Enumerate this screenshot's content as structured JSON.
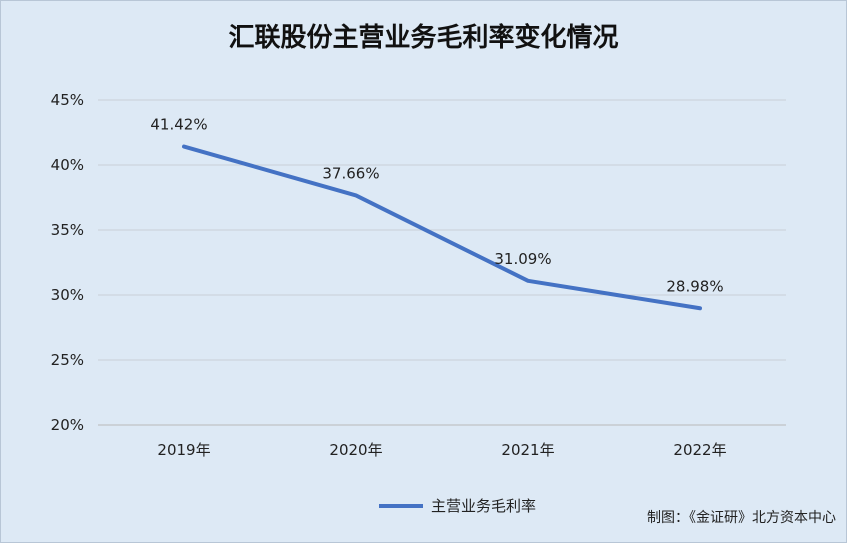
{
  "chart_data": {
    "type": "line",
    "title": "汇联股份主营业务毛利率变化情况",
    "categories": [
      "2019年",
      "2020年",
      "2021年",
      "2022年"
    ],
    "series": [
      {
        "name": "主营业务毛利率",
        "values": [
          41.42,
          37.66,
          31.09,
          28.98
        ],
        "color": "#4472c4"
      }
    ],
    "data_labels": [
      "41.42%",
      "37.66%",
      "31.09%",
      "28.98%"
    ],
    "yticks": [
      "20%",
      "25%",
      "30%",
      "35%",
      "40%",
      "45%"
    ],
    "ylim": [
      20,
      45
    ],
    "grid": true,
    "legend_position": "bottom-center"
  },
  "credit": "制图：《金证研》北方资本中心"
}
